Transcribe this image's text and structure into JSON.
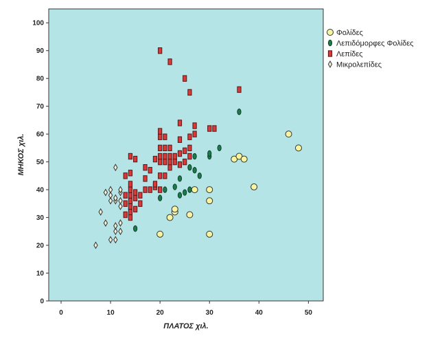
{
  "chart_data": {
    "type": "scatter",
    "xlabel": "ΠΛΑΤΟΣ χιλ.",
    "ylabel": "ΜΗΚΟΣ χιλ.",
    "xlim": [
      -2.5,
      53
    ],
    "ylim": [
      0,
      105
    ],
    "xticks": [
      "0",
      "10",
      "20",
      "30",
      "40",
      "50"
    ],
    "yticks": [
      "0",
      "10",
      "20",
      "30",
      "40",
      "50",
      "60",
      "70",
      "80",
      "90",
      "100"
    ],
    "background": "#b4e4e6",
    "legend_position": "right",
    "series": [
      {
        "name": "Φολίδες",
        "marker": "circle",
        "color": "#f8f4a0",
        "stroke": "#333333",
        "points": [
          [
            20,
            24
          ],
          [
            22,
            30
          ],
          [
            23,
            32
          ],
          [
            23,
            33
          ],
          [
            26,
            31
          ],
          [
            27,
            40
          ],
          [
            30,
            40
          ],
          [
            30,
            36
          ],
          [
            30,
            24
          ],
          [
            35,
            51
          ],
          [
            36,
            52
          ],
          [
            37,
            51
          ],
          [
            39,
            41
          ],
          [
            46,
            60
          ],
          [
            48,
            55
          ]
        ]
      },
      {
        "name": "Λεπιδόμορφες Φολίδες",
        "marker": "ellipse",
        "color": "#1d7a4c",
        "stroke": "#0f3f28",
        "points": [
          [
            15,
            26
          ],
          [
            20,
            37
          ],
          [
            21,
            40
          ],
          [
            23,
            41
          ],
          [
            24,
            38
          ],
          [
            24,
            44
          ],
          [
            25,
            39
          ],
          [
            26,
            40
          ],
          [
            26,
            48
          ],
          [
            27,
            47
          ],
          [
            27,
            52
          ],
          [
            28,
            45
          ],
          [
            30,
            52
          ],
          [
            30,
            53
          ],
          [
            32,
            55
          ],
          [
            36,
            68
          ]
        ]
      },
      {
        "name": "Λεπίδες",
        "marker": "rect",
        "color": "#d83a3a",
        "stroke": "#5a1414",
        "points": [
          [
            13,
            31
          ],
          [
            13,
            35
          ],
          [
            13,
            38
          ],
          [
            13,
            45
          ],
          [
            14,
            30
          ],
          [
            14,
            32
          ],
          [
            14,
            34
          ],
          [
            14,
            36
          ],
          [
            14,
            38
          ],
          [
            14,
            40
          ],
          [
            14,
            42
          ],
          [
            14,
            46
          ],
          [
            14,
            52
          ],
          [
            15,
            33
          ],
          [
            15,
            37
          ],
          [
            15,
            39
          ],
          [
            15,
            51
          ],
          [
            16,
            35
          ],
          [
            16,
            38
          ],
          [
            17,
            40
          ],
          [
            17,
            44
          ],
          [
            17,
            48
          ],
          [
            18,
            40
          ],
          [
            18,
            47
          ],
          [
            19,
            41
          ],
          [
            19,
            42
          ],
          [
            19,
            51
          ],
          [
            20,
            40
          ],
          [
            20,
            45
          ],
          [
            20,
            50
          ],
          [
            20,
            52
          ],
          [
            20,
            55
          ],
          [
            20,
            59
          ],
          [
            20,
            61
          ],
          [
            21,
            45
          ],
          [
            21,
            50
          ],
          [
            21,
            52
          ],
          [
            21,
            55
          ],
          [
            21,
            59
          ],
          [
            22,
            48
          ],
          [
            22,
            50
          ],
          [
            22,
            52
          ],
          [
            22,
            55
          ],
          [
            22,
            86
          ],
          [
            23,
            50
          ],
          [
            23,
            52
          ],
          [
            24,
            49
          ],
          [
            24,
            53
          ],
          [
            24,
            58
          ],
          [
            24,
            64
          ],
          [
            25,
            50
          ],
          [
            25,
            54
          ],
          [
            25,
            80
          ],
          [
            26,
            52
          ],
          [
            26,
            55
          ],
          [
            26,
            59
          ],
          [
            26,
            75
          ],
          [
            27,
            60
          ],
          [
            27,
            63
          ],
          [
            30,
            62
          ],
          [
            31,
            62
          ],
          [
            36,
            76
          ],
          [
            20,
            90
          ]
        ]
      },
      {
        "name": "Μικρολεπίδες",
        "marker": "diamond",
        "color": "#f4f0d8",
        "stroke": "#333333",
        "points": [
          [
            7,
            20
          ],
          [
            8,
            32
          ],
          [
            9,
            28
          ],
          [
            9,
            39
          ],
          [
            10,
            22
          ],
          [
            10,
            36
          ],
          [
            10,
            38
          ],
          [
            10,
            40
          ],
          [
            11,
            22
          ],
          [
            11,
            25
          ],
          [
            11,
            27
          ],
          [
            11,
            36
          ],
          [
            11,
            37
          ],
          [
            11,
            48
          ],
          [
            12,
            25
          ],
          [
            12,
            28
          ],
          [
            12,
            34
          ],
          [
            12,
            36
          ],
          [
            12,
            39
          ],
          [
            12,
            40
          ]
        ]
      }
    ]
  }
}
